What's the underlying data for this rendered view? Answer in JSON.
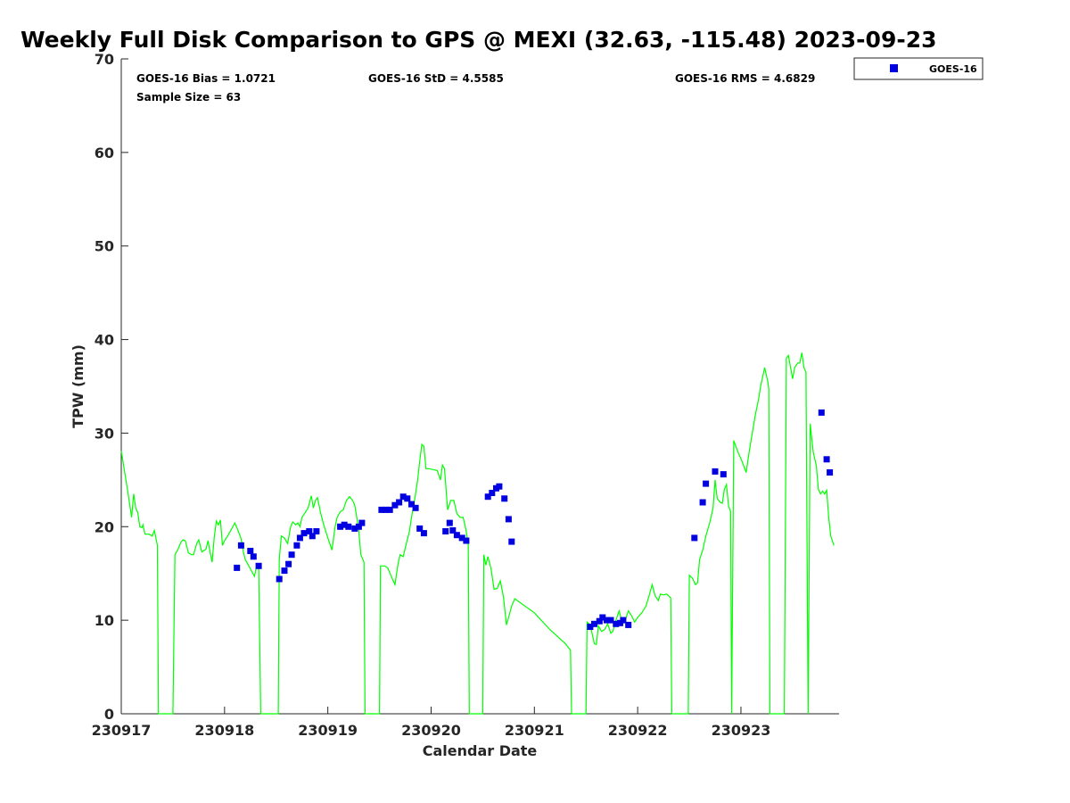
{
  "chart_data": {
    "type": "scatter",
    "title": "Weekly Full Disk Comparison to GPS @ MEXI (32.63, -115.48) 2023-09-23",
    "xlabel": "Calendar Date",
    "ylabel": "TPW (mm)",
    "xlim": [
      0,
      6.95
    ],
    "ylim": [
      0,
      70
    ],
    "x_ticks": [
      {
        "value": 0,
        "label": "230917"
      },
      {
        "value": 1,
        "label": "230918"
      },
      {
        "value": 2,
        "label": "230919"
      },
      {
        "value": 3,
        "label": "230920"
      },
      {
        "value": 4,
        "label": "230921"
      },
      {
        "value": 5,
        "label": "230922"
      },
      {
        "value": 6,
        "label": "230923"
      }
    ],
    "y_ticks": [
      {
        "value": 0,
        "label": "0"
      },
      {
        "value": 10,
        "label": "10"
      },
      {
        "value": 20,
        "label": "20"
      },
      {
        "value": 30,
        "label": "30"
      },
      {
        "value": 40,
        "label": "40"
      },
      {
        "value": 50,
        "label": "50"
      },
      {
        "value": 60,
        "label": "60"
      },
      {
        "value": 70,
        "label": "70"
      }
    ],
    "grid": false,
    "legend_position": "outside top-right",
    "stats": {
      "bias": "GOES-16 Bias = 1.0721",
      "std": "GOES-16 StD = 4.5585",
      "rms": "GOES-16 RMS = 4.6829",
      "sample": "Sample Size = 63"
    },
    "series": [
      {
        "name": "GOES-16",
        "kind": "scatter",
        "color": "#0000e0",
        "marker": "square",
        "points": [
          [
            1.12,
            15.6
          ],
          [
            1.16,
            18.0
          ],
          [
            1.25,
            17.4
          ],
          [
            1.28,
            16.8
          ],
          [
            1.33,
            15.8
          ],
          [
            1.53,
            14.4
          ],
          [
            1.58,
            15.3
          ],
          [
            1.62,
            16.0
          ],
          [
            1.65,
            17.0
          ],
          [
            1.7,
            18.0
          ],
          [
            1.73,
            18.8
          ],
          [
            1.77,
            19.3
          ],
          [
            1.82,
            19.5
          ],
          [
            1.85,
            19.0
          ],
          [
            1.89,
            19.5
          ],
          [
            2.12,
            20.0
          ],
          [
            2.16,
            20.2
          ],
          [
            2.2,
            20.0
          ],
          [
            2.26,
            19.8
          ],
          [
            2.3,
            20.0
          ],
          [
            2.33,
            20.4
          ],
          [
            2.52,
            21.8
          ],
          [
            2.56,
            21.8
          ],
          [
            2.6,
            21.8
          ],
          [
            2.65,
            22.3
          ],
          [
            2.69,
            22.6
          ],
          [
            2.73,
            23.2
          ],
          [
            2.77,
            23.0
          ],
          [
            2.81,
            22.4
          ],
          [
            2.85,
            22.0
          ],
          [
            2.89,
            19.8
          ],
          [
            2.93,
            19.3
          ],
          [
            3.14,
            19.5
          ],
          [
            3.18,
            20.4
          ],
          [
            3.21,
            19.6
          ],
          [
            3.25,
            19.1
          ],
          [
            3.3,
            18.8
          ],
          [
            3.34,
            18.5
          ],
          [
            3.55,
            23.2
          ],
          [
            3.59,
            23.6
          ],
          [
            3.63,
            24.1
          ],
          [
            3.66,
            24.3
          ],
          [
            3.71,
            23.0
          ],
          [
            3.75,
            20.8
          ],
          [
            3.78,
            18.4
          ],
          [
            4.54,
            9.3
          ],
          [
            4.58,
            9.6
          ],
          [
            4.63,
            9.9
          ],
          [
            4.66,
            10.3
          ],
          [
            4.7,
            10.0
          ],
          [
            4.74,
            10.0
          ],
          [
            4.79,
            9.6
          ],
          [
            4.83,
            9.7
          ],
          [
            4.86,
            10.0
          ],
          [
            4.91,
            9.5
          ],
          [
            5.55,
            18.8
          ],
          [
            5.63,
            22.6
          ],
          [
            5.66,
            24.6
          ],
          [
            5.75,
            25.9
          ],
          [
            5.83,
            25.6
          ],
          [
            6.78,
            32.2
          ],
          [
            6.83,
            27.2
          ],
          [
            6.86,
            25.8
          ]
        ]
      },
      {
        "name": "GPS",
        "kind": "line",
        "color": "#00ff00",
        "points": [
          [
            0.0,
            28.1
          ],
          [
            0.03,
            26.0
          ],
          [
            0.06,
            24.0
          ],
          [
            0.08,
            22.5
          ],
          [
            0.1,
            21.0
          ],
          [
            0.12,
            23.5
          ],
          [
            0.14,
            22.0
          ],
          [
            0.16,
            21.5
          ],
          [
            0.18,
            20.0
          ],
          [
            0.2,
            19.9
          ],
          [
            0.21,
            20.2
          ],
          [
            0.23,
            19.2
          ],
          [
            0.25,
            19.2
          ],
          [
            0.27,
            19.2
          ],
          [
            0.3,
            19.0
          ],
          [
            0.32,
            19.6
          ],
          [
            0.35,
            18.0
          ],
          [
            0.36,
            0
          ],
          [
            0.5,
            0
          ],
          [
            0.52,
            17.0
          ],
          [
            0.55,
            17.6
          ],
          [
            0.58,
            18.4
          ],
          [
            0.6,
            18.6
          ],
          [
            0.62,
            18.5
          ],
          [
            0.65,
            17.2
          ],
          [
            0.68,
            17.0
          ],
          [
            0.7,
            17.0
          ],
          [
            0.73,
            18.2
          ],
          [
            0.75,
            18.6
          ],
          [
            0.78,
            17.3
          ],
          [
            0.82,
            17.6
          ],
          [
            0.84,
            18.5
          ],
          [
            0.86,
            17.3
          ],
          [
            0.88,
            16.2
          ],
          [
            0.9,
            18.8
          ],
          [
            0.92,
            20.6
          ],
          [
            0.94,
            20.2
          ],
          [
            0.96,
            20.7
          ],
          [
            0.98,
            18.0
          ],
          [
            1.0,
            18.5
          ],
          [
            1.03,
            19.0
          ],
          [
            1.06,
            19.6
          ],
          [
            1.1,
            20.4
          ],
          [
            1.13,
            19.6
          ],
          [
            1.16,
            18.7
          ],
          [
            1.18,
            17.4
          ],
          [
            1.2,
            16.5
          ],
          [
            1.23,
            15.9
          ],
          [
            1.26,
            15.3
          ],
          [
            1.29,
            14.7
          ],
          [
            1.31,
            15.8
          ],
          [
            1.33,
            15.8
          ],
          [
            1.35,
            0
          ],
          [
            1.52,
            0
          ],
          [
            1.53,
            16.5
          ],
          [
            1.55,
            19.0
          ],
          [
            1.58,
            18.8
          ],
          [
            1.61,
            18.2
          ],
          [
            1.64,
            20.0
          ],
          [
            1.66,
            20.5
          ],
          [
            1.69,
            20.2
          ],
          [
            1.71,
            20.4
          ],
          [
            1.73,
            20.0
          ],
          [
            1.75,
            21.0
          ],
          [
            1.78,
            21.5
          ],
          [
            1.81,
            22.0
          ],
          [
            1.84,
            23.3
          ],
          [
            1.86,
            22.0
          ],
          [
            1.88,
            22.8
          ],
          [
            1.9,
            23.1
          ],
          [
            1.93,
            21.5
          ],
          [
            1.96,
            20.2
          ],
          [
            2.0,
            18.8
          ],
          [
            2.04,
            17.5
          ],
          [
            2.07,
            20.0
          ],
          [
            2.09,
            21.0
          ],
          [
            2.12,
            21.6
          ],
          [
            2.15,
            21.8
          ],
          [
            2.18,
            22.8
          ],
          [
            2.21,
            23.2
          ],
          [
            2.24,
            22.8
          ],
          [
            2.26,
            22.3
          ],
          [
            2.28,
            21.0
          ],
          [
            2.3,
            19.5
          ],
          [
            2.32,
            17.0
          ],
          [
            2.35,
            16.2
          ],
          [
            2.36,
            0
          ],
          [
            2.5,
            0
          ],
          [
            2.51,
            15.8
          ],
          [
            2.55,
            15.8
          ],
          [
            2.58,
            15.6
          ],
          [
            2.61,
            14.8
          ],
          [
            2.65,
            13.8
          ],
          [
            2.68,
            16.0
          ],
          [
            2.7,
            17.0
          ],
          [
            2.73,
            16.8
          ],
          [
            2.76,
            18.2
          ],
          [
            2.79,
            19.5
          ],
          [
            2.81,
            21.0
          ],
          [
            2.84,
            22.8
          ],
          [
            2.87,
            25.0
          ],
          [
            2.89,
            27.0
          ],
          [
            2.91,
            28.8
          ],
          [
            2.93,
            28.6
          ],
          [
            2.95,
            26.2
          ],
          [
            2.98,
            26.2
          ],
          [
            3.02,
            26.1
          ],
          [
            3.06,
            26.0
          ],
          [
            3.09,
            25.0
          ],
          [
            3.11,
            26.6
          ],
          [
            3.13,
            26.2
          ],
          [
            3.16,
            21.8
          ],
          [
            3.19,
            22.8
          ],
          [
            3.22,
            22.8
          ],
          [
            3.25,
            21.4
          ],
          [
            3.28,
            21.0
          ],
          [
            3.31,
            21.0
          ],
          [
            3.34,
            19.5
          ],
          [
            3.36,
            18.0
          ],
          [
            3.37,
            0
          ],
          [
            3.5,
            0
          ],
          [
            3.51,
            17.0
          ],
          [
            3.53,
            15.9
          ],
          [
            3.55,
            16.8
          ],
          [
            3.58,
            15.5
          ],
          [
            3.61,
            13.3
          ],
          [
            3.64,
            13.4
          ],
          [
            3.67,
            14.2
          ],
          [
            3.7,
            12.5
          ],
          [
            3.73,
            9.5
          ],
          [
            3.75,
            10.3
          ],
          [
            3.78,
            11.5
          ],
          [
            3.81,
            12.3
          ],
          [
            4.0,
            10.8
          ],
          [
            4.15,
            9.0
          ],
          [
            4.3,
            7.5
          ],
          [
            4.35,
            6.8
          ],
          [
            4.36,
            0
          ],
          [
            4.5,
            0
          ],
          [
            4.51,
            9.8
          ],
          [
            4.54,
            9.5
          ],
          [
            4.56,
            8.5
          ],
          [
            4.58,
            7.5
          ],
          [
            4.6,
            7.4
          ],
          [
            4.62,
            9.4
          ],
          [
            4.65,
            8.8
          ],
          [
            4.68,
            9.0
          ],
          [
            4.71,
            9.6
          ],
          [
            4.74,
            8.6
          ],
          [
            4.76,
            8.8
          ],
          [
            4.79,
            10.0
          ],
          [
            4.82,
            11.0
          ],
          [
            4.85,
            9.8
          ],
          [
            4.88,
            10.0
          ],
          [
            4.91,
            11.0
          ],
          [
            4.94,
            10.5
          ],
          [
            4.97,
            9.8
          ],
          [
            5.0,
            10.3
          ],
          [
            5.04,
            10.8
          ],
          [
            5.08,
            11.5
          ],
          [
            5.11,
            12.6
          ],
          [
            5.14,
            13.8
          ],
          [
            5.17,
            12.6
          ],
          [
            5.2,
            12.1
          ],
          [
            5.22,
            12.8
          ],
          [
            5.25,
            12.7
          ],
          [
            5.28,
            12.8
          ],
          [
            5.32,
            12.4
          ],
          [
            5.33,
            0
          ],
          [
            5.49,
            0
          ],
          [
            5.5,
            14.8
          ],
          [
            5.53,
            14.5
          ],
          [
            5.56,
            13.8
          ],
          [
            5.58,
            14.0
          ],
          [
            5.6,
            16.5
          ],
          [
            5.63,
            17.5
          ],
          [
            5.66,
            19.0
          ],
          [
            5.7,
            20.5
          ],
          [
            5.73,
            22.0
          ],
          [
            5.75,
            25.0
          ],
          [
            5.77,
            23.0
          ],
          [
            5.8,
            22.6
          ],
          [
            5.82,
            22.5
          ],
          [
            5.84,
            24.0
          ],
          [
            5.86,
            24.5
          ],
          [
            5.88,
            22.2
          ],
          [
            5.9,
            21.6
          ],
          [
            5.91,
            0
          ],
          [
            5.93,
            29.2
          ],
          [
            5.97,
            28.0
          ],
          [
            6.01,
            27.0
          ],
          [
            6.05,
            25.8
          ],
          [
            6.08,
            28.0
          ],
          [
            6.11,
            30.0
          ],
          [
            6.14,
            32.0
          ],
          [
            6.17,
            33.6
          ],
          [
            6.19,
            35.0
          ],
          [
            6.21,
            36.0
          ],
          [
            6.23,
            37.0
          ],
          [
            6.26,
            35.5
          ],
          [
            6.27,
            34.7
          ],
          [
            6.28,
            0
          ],
          [
            6.42,
            0
          ],
          [
            6.44,
            38.0
          ],
          [
            6.46,
            38.3
          ],
          [
            6.48,
            37.0
          ],
          [
            6.5,
            35.8
          ],
          [
            6.52,
            37.0
          ],
          [
            6.55,
            37.5
          ],
          [
            6.57,
            37.5
          ],
          [
            6.59,
            38.6
          ],
          [
            6.61,
            37.0
          ],
          [
            6.63,
            36.5
          ],
          [
            6.65,
            0
          ],
          [
            6.67,
            31.0
          ],
          [
            6.7,
            28.0
          ],
          [
            6.73,
            26.5
          ],
          [
            6.75,
            24.0
          ],
          [
            6.77,
            23.5
          ],
          [
            6.79,
            23.8
          ],
          [
            6.81,
            23.5
          ],
          [
            6.83,
            23.9
          ],
          [
            6.85,
            21.0
          ],
          [
            6.87,
            19.0
          ],
          [
            6.9,
            18.0
          ]
        ]
      }
    ],
    "legend": [
      {
        "label": "GOES-16",
        "color": "#0000e0",
        "marker": "square"
      }
    ]
  }
}
